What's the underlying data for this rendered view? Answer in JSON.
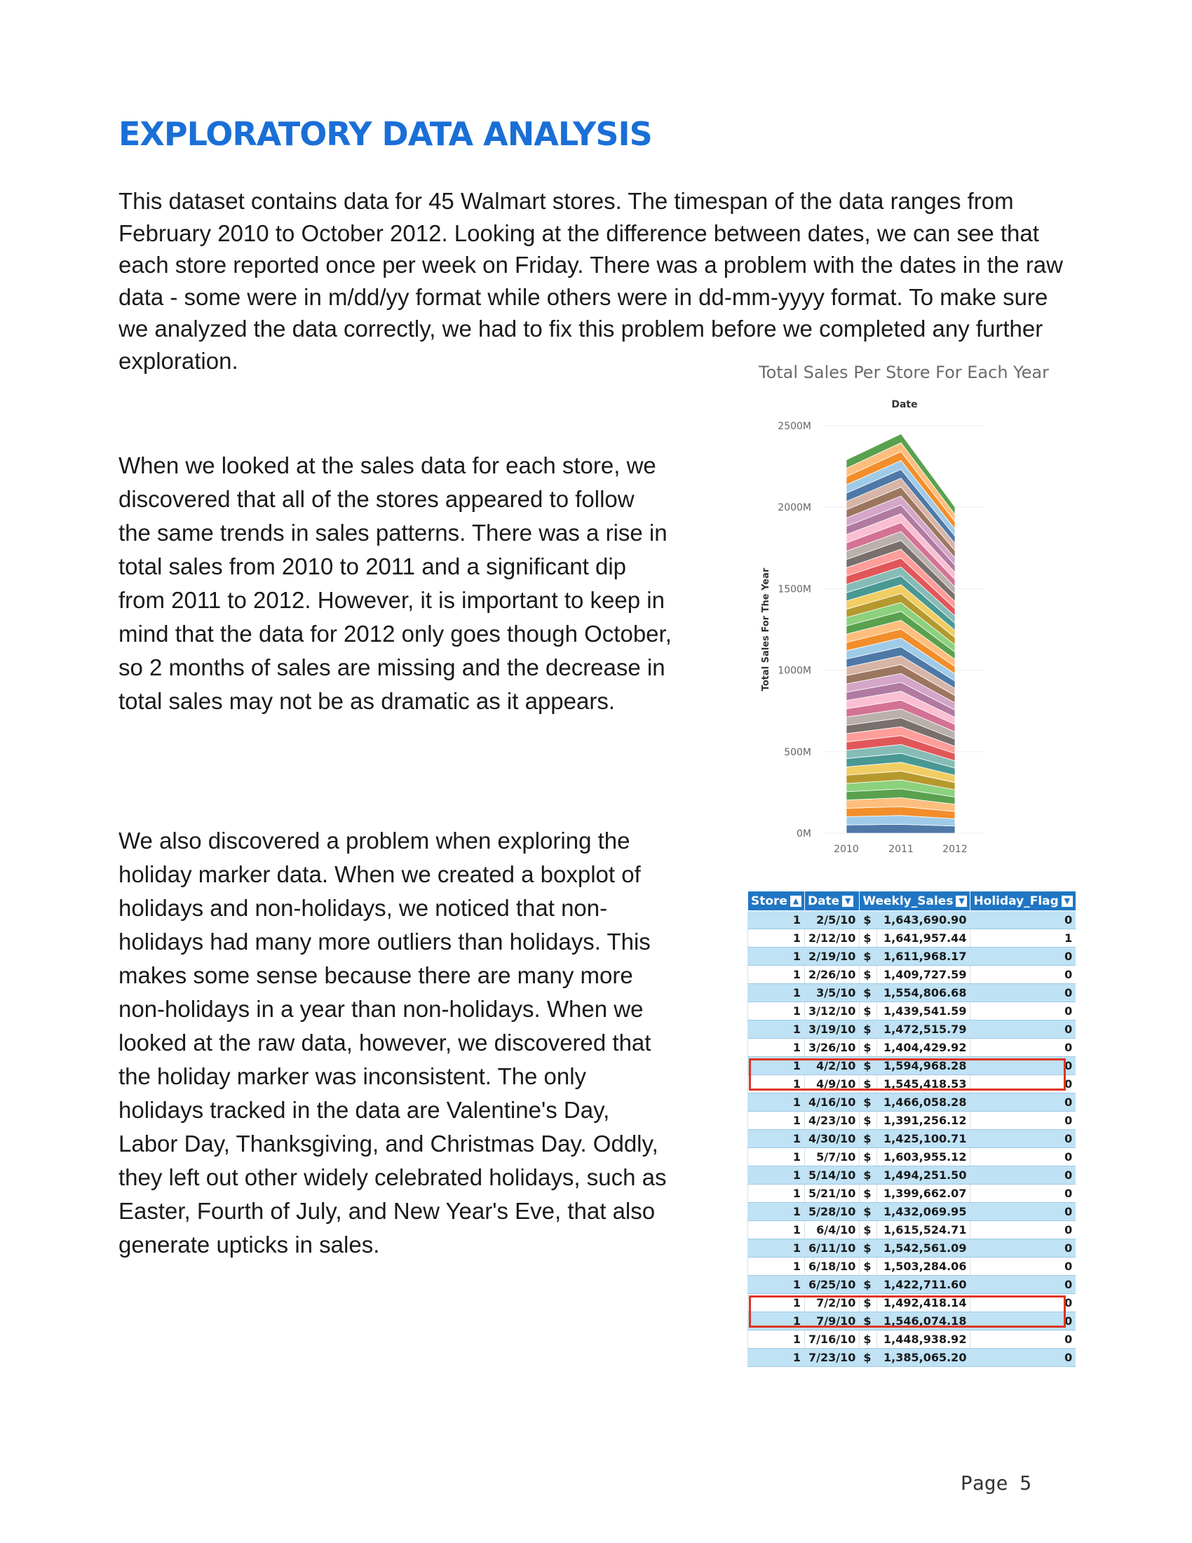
{
  "title": "EXPLORATORY DATA ANALYSIS",
  "paragraphs": {
    "p1": "This dataset contains data for 45 Walmart stores. The timespan of the data ranges from February 2010 to October 2012. Looking at the difference between dates, we can see that each store reported once per week on Friday. There was a problem with the dates in the raw data - some were in m/dd/yy format while others were in dd-mm-yyyy format. To make sure we analyzed the data correctly, we had to fix this problem before we completed any further exploration.",
    "p2": "When we looked at the sales data for each store, we discovered that all of the stores appeared to follow the same trends in sales patterns. There was a rise in total sales from 2010 to 2011 and a significant dip from 2011 to 2012. However, it is important to keep in mind that the data for 2012 only goes though October, so 2 months of sales are missing and the decrease in total sales may not be as dramatic as it appears.",
    "p3": "We also discovered a problem when exploring the holiday marker data. When we created a boxplot of holidays and non-holidays, we noticed that non-holidays had many more outliers than holidays. This makes some sense because there are many more non-holidays in a year than non-holidays. When we looked at the raw data, however, we discovered that the holiday marker was inconsistent. The only holidays tracked in the data are Valentine's Day, Labor Day, Thanksgiving, and Christmas Day. Oddly, they left out other widely celebrated holidays, such as Easter, Fourth of July, and New Year's Eve, that also generate upticks in sales."
  },
  "chart_data": {
    "type": "area",
    "title": "Total Sales Per Store For Each Year",
    "top_label": "Date",
    "xlabel": "",
    "ylabel": "Total Sales For The Year",
    "x": [
      "2010",
      "2011",
      "2012"
    ],
    "yticks": [
      "0M",
      "500M",
      "1000M",
      "1500M",
      "2000M",
      "2500M"
    ],
    "ylim": [
      0,
      2500
    ],
    "stacked": true,
    "series_count": 45,
    "totals": [
      2290,
      2450,
      2000
    ],
    "grid": true,
    "palette": [
      "#4e79a7",
      "#a0cbe8",
      "#f28e2b",
      "#ffbe7d",
      "#59a14f",
      "#8cd17d",
      "#b6992d",
      "#f1ce63",
      "#499894",
      "#86bcb6",
      "#e15759",
      "#ff9d9a",
      "#79706e",
      "#bab0ac",
      "#d37295",
      "#fabfd2",
      "#b07aa1",
      "#d4a6c8",
      "#9d7660",
      "#d7b5a6"
    ]
  },
  "table": {
    "headers": [
      "Store",
      "Date",
      "Weekly_Sales",
      "Holiday_Flag"
    ],
    "header_icons": [
      "sort-icon",
      "dropdown-icon",
      "dropdown-icon",
      "dropdown-icon"
    ],
    "rows": [
      [
        "1",
        "2/5/10",
        "$",
        "1,643,690.90",
        "0"
      ],
      [
        "1",
        "2/12/10",
        "$",
        "1,641,957.44",
        "1"
      ],
      [
        "1",
        "2/19/10",
        "$",
        "1,611,968.17",
        "0"
      ],
      [
        "1",
        "2/26/10",
        "$",
        "1,409,727.59",
        "0"
      ],
      [
        "1",
        "3/5/10",
        "$",
        "1,554,806.68",
        "0"
      ],
      [
        "1",
        "3/12/10",
        "$",
        "1,439,541.59",
        "0"
      ],
      [
        "1",
        "3/19/10",
        "$",
        "1,472,515.79",
        "0"
      ],
      [
        "1",
        "3/26/10",
        "$",
        "1,404,429.92",
        "0"
      ],
      [
        "1",
        "4/2/10",
        "$",
        "1,594,968.28",
        "0"
      ],
      [
        "1",
        "4/9/10",
        "$",
        "1,545,418.53",
        "0"
      ],
      [
        "1",
        "4/16/10",
        "$",
        "1,466,058.28",
        "0"
      ],
      [
        "1",
        "4/23/10",
        "$",
        "1,391,256.12",
        "0"
      ],
      [
        "1",
        "4/30/10",
        "$",
        "1,425,100.71",
        "0"
      ],
      [
        "1",
        "5/7/10",
        "$",
        "1,603,955.12",
        "0"
      ],
      [
        "1",
        "5/14/10",
        "$",
        "1,494,251.50",
        "0"
      ],
      [
        "1",
        "5/21/10",
        "$",
        "1,399,662.07",
        "0"
      ],
      [
        "1",
        "5/28/10",
        "$",
        "1,432,069.95",
        "0"
      ],
      [
        "1",
        "6/4/10",
        "$",
        "1,615,524.71",
        "0"
      ],
      [
        "1",
        "6/11/10",
        "$",
        "1,542,561.09",
        "0"
      ],
      [
        "1",
        "6/18/10",
        "$",
        "1,503,284.06",
        "0"
      ],
      [
        "1",
        "6/25/10",
        "$",
        "1,422,711.60",
        "0"
      ],
      [
        "1",
        "7/2/10",
        "$",
        "1,492,418.14",
        "0"
      ],
      [
        "1",
        "7/9/10",
        "$",
        "1,546,074.18",
        "0"
      ],
      [
        "1",
        "7/16/10",
        "$",
        "1,448,938.92",
        "0"
      ],
      [
        "1",
        "7/23/10",
        "$",
        "1,385,065.20",
        "0"
      ]
    ],
    "highlight_color": "#e03424"
  },
  "footer": {
    "page": "Page 5"
  }
}
